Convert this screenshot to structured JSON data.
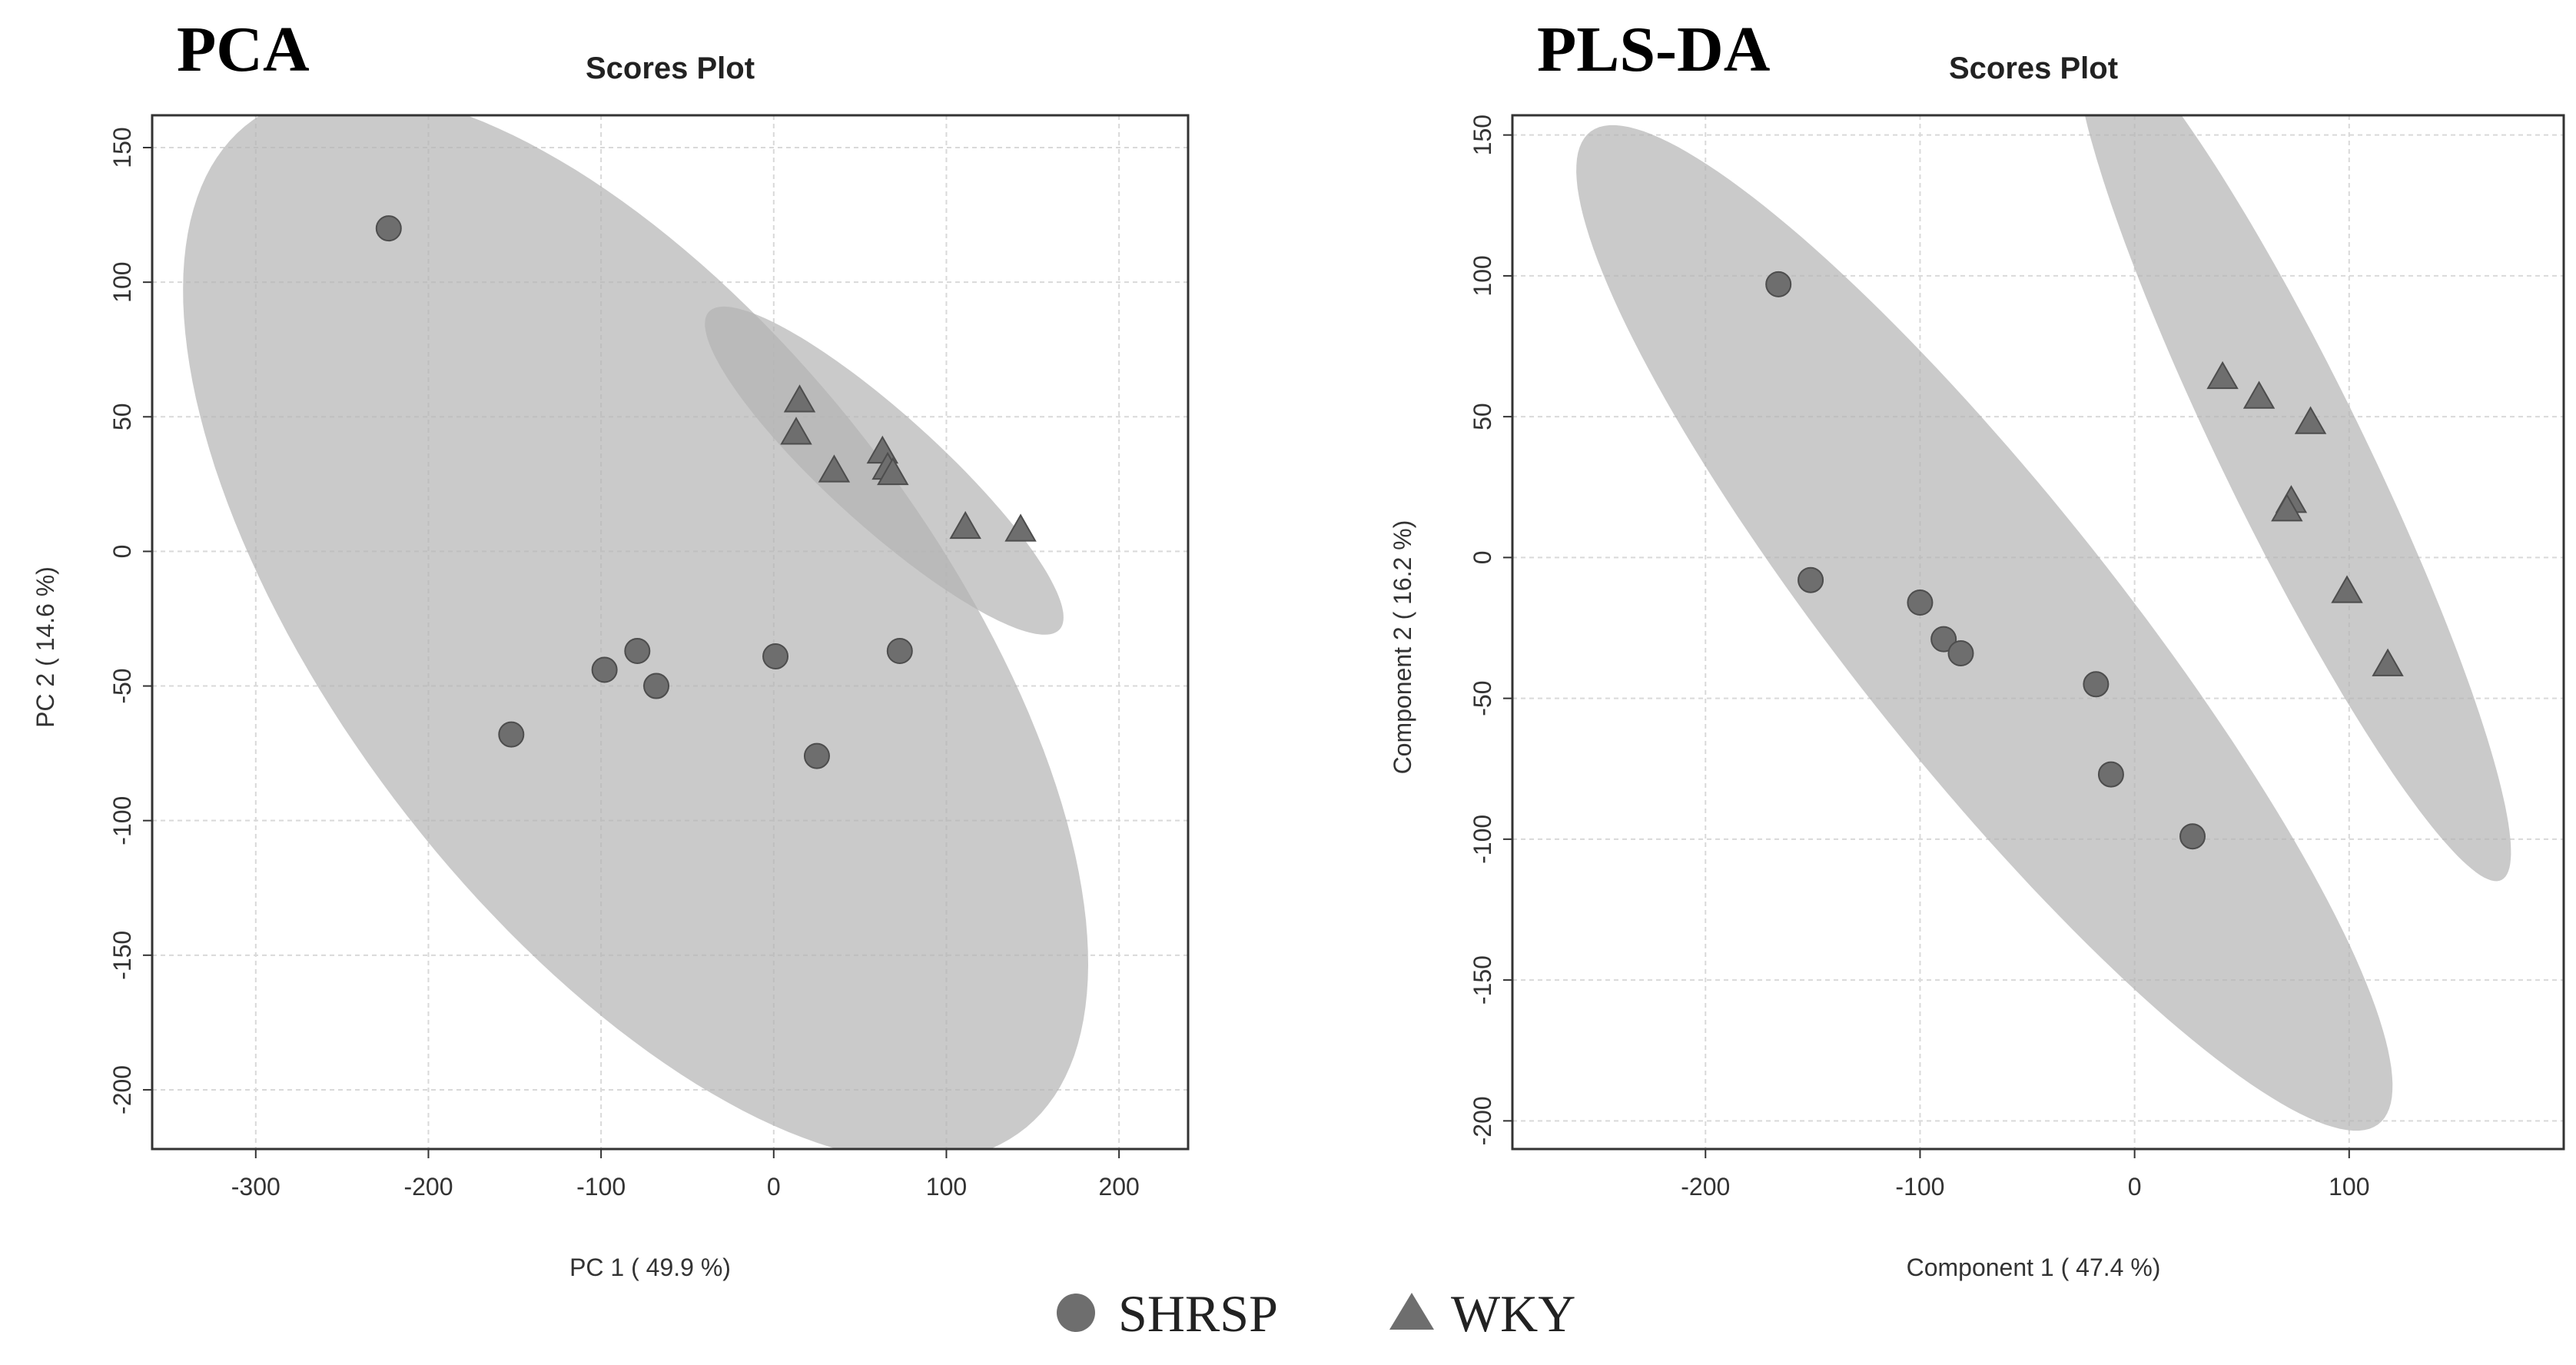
{
  "figure": {
    "legend": [
      {
        "name": "SHRSP",
        "marker": "circle"
      },
      {
        "name": "WKY",
        "marker": "triangle"
      }
    ],
    "colors": {
      "marker": "#6e6e6e",
      "marker_edge": "#4d4d4d",
      "ellipse": "#b3b3b3",
      "grid": "#d9d9d9",
      "frame": "#333333"
    }
  },
  "chart_data": [
    {
      "type": "scatter",
      "panel_title": "PCA",
      "title": "Scores Plot",
      "xlabel": "PC 1 ( 49.9 %)",
      "ylabel": "PC 2 ( 14.6 %)",
      "xlim": [
        -360,
        240
      ],
      "ylim": [
        -222,
        162
      ],
      "xticks": [
        -300,
        -200,
        -100,
        0,
        100,
        200
      ],
      "yticks": [
        -200,
        -150,
        -100,
        -50,
        0,
        50,
        100,
        150
      ],
      "grid": true,
      "series": [
        {
          "name": "SHRSP",
          "marker": "circle",
          "points": [
            [
              -223,
              120
            ],
            [
              -152,
              -68
            ],
            [
              -98,
              -44
            ],
            [
              -79,
              -37
            ],
            [
              -68,
              -50
            ],
            [
              1,
              -39
            ],
            [
              25,
              -76
            ],
            [
              73,
              -37
            ]
          ],
          "ellipse": {
            "center": [
              -80,
              -28
            ],
            "semi_major": 300,
            "semi_minor": 135,
            "angle_deg": -33
          }
        },
        {
          "name": "WKY",
          "marker": "triangle",
          "points": [
            [
              15,
              56
            ],
            [
              13,
              44
            ],
            [
              35,
              30
            ],
            [
              63,
              37
            ],
            [
              66,
              31
            ],
            [
              69,
              29
            ],
            [
              111,
              9
            ],
            [
              143,
              8
            ]
          ],
          "ellipse": {
            "center": [
              64,
              30
            ],
            "semi_major": 118,
            "semi_minor": 24,
            "angle_deg": -29
          }
        }
      ]
    },
    {
      "type": "scatter",
      "panel_title": "PLS-DA",
      "title": "Scores Plot",
      "xlabel": "Component 1 ( 47.4 %)",
      "ylabel": "Component 2 ( 16.2 %)",
      "xlim": [
        -290,
        200
      ],
      "ylim": [
        -210,
        157
      ],
      "xticks": [
        -200,
        -100,
        0,
        100
      ],
      "yticks": [
        -200,
        -150,
        -100,
        -50,
        0,
        50,
        100,
        150
      ],
      "grid": true,
      "series": [
        {
          "name": "SHRSP",
          "marker": "circle",
          "points": [
            [
              -166,
              97
            ],
            [
              -151,
              -8
            ],
            [
              -100,
              -16
            ],
            [
              -89,
              -29
            ],
            [
              -81,
              -34
            ],
            [
              -18,
              -45
            ],
            [
              -11,
              -77
            ],
            [
              27,
              -99
            ]
          ],
          "ellipse": {
            "center": [
              -70,
              -25
            ],
            "semi_major": 255,
            "semi_minor": 55,
            "angle_deg": -43
          }
        },
        {
          "name": "WKY",
          "marker": "triangle",
          "points": [
            [
              41,
              64
            ],
            [
              58,
              57
            ],
            [
              82,
              48
            ],
            [
              73,
              20
            ],
            [
              71,
              17
            ],
            [
              99,
              -12
            ],
            [
              118,
              -38
            ]
          ],
          "ellipse": {
            "center": [
              74,
              37
            ],
            "semi_major": 180,
            "semi_minor": 31,
            "angle_deg": -57
          }
        }
      ]
    }
  ]
}
